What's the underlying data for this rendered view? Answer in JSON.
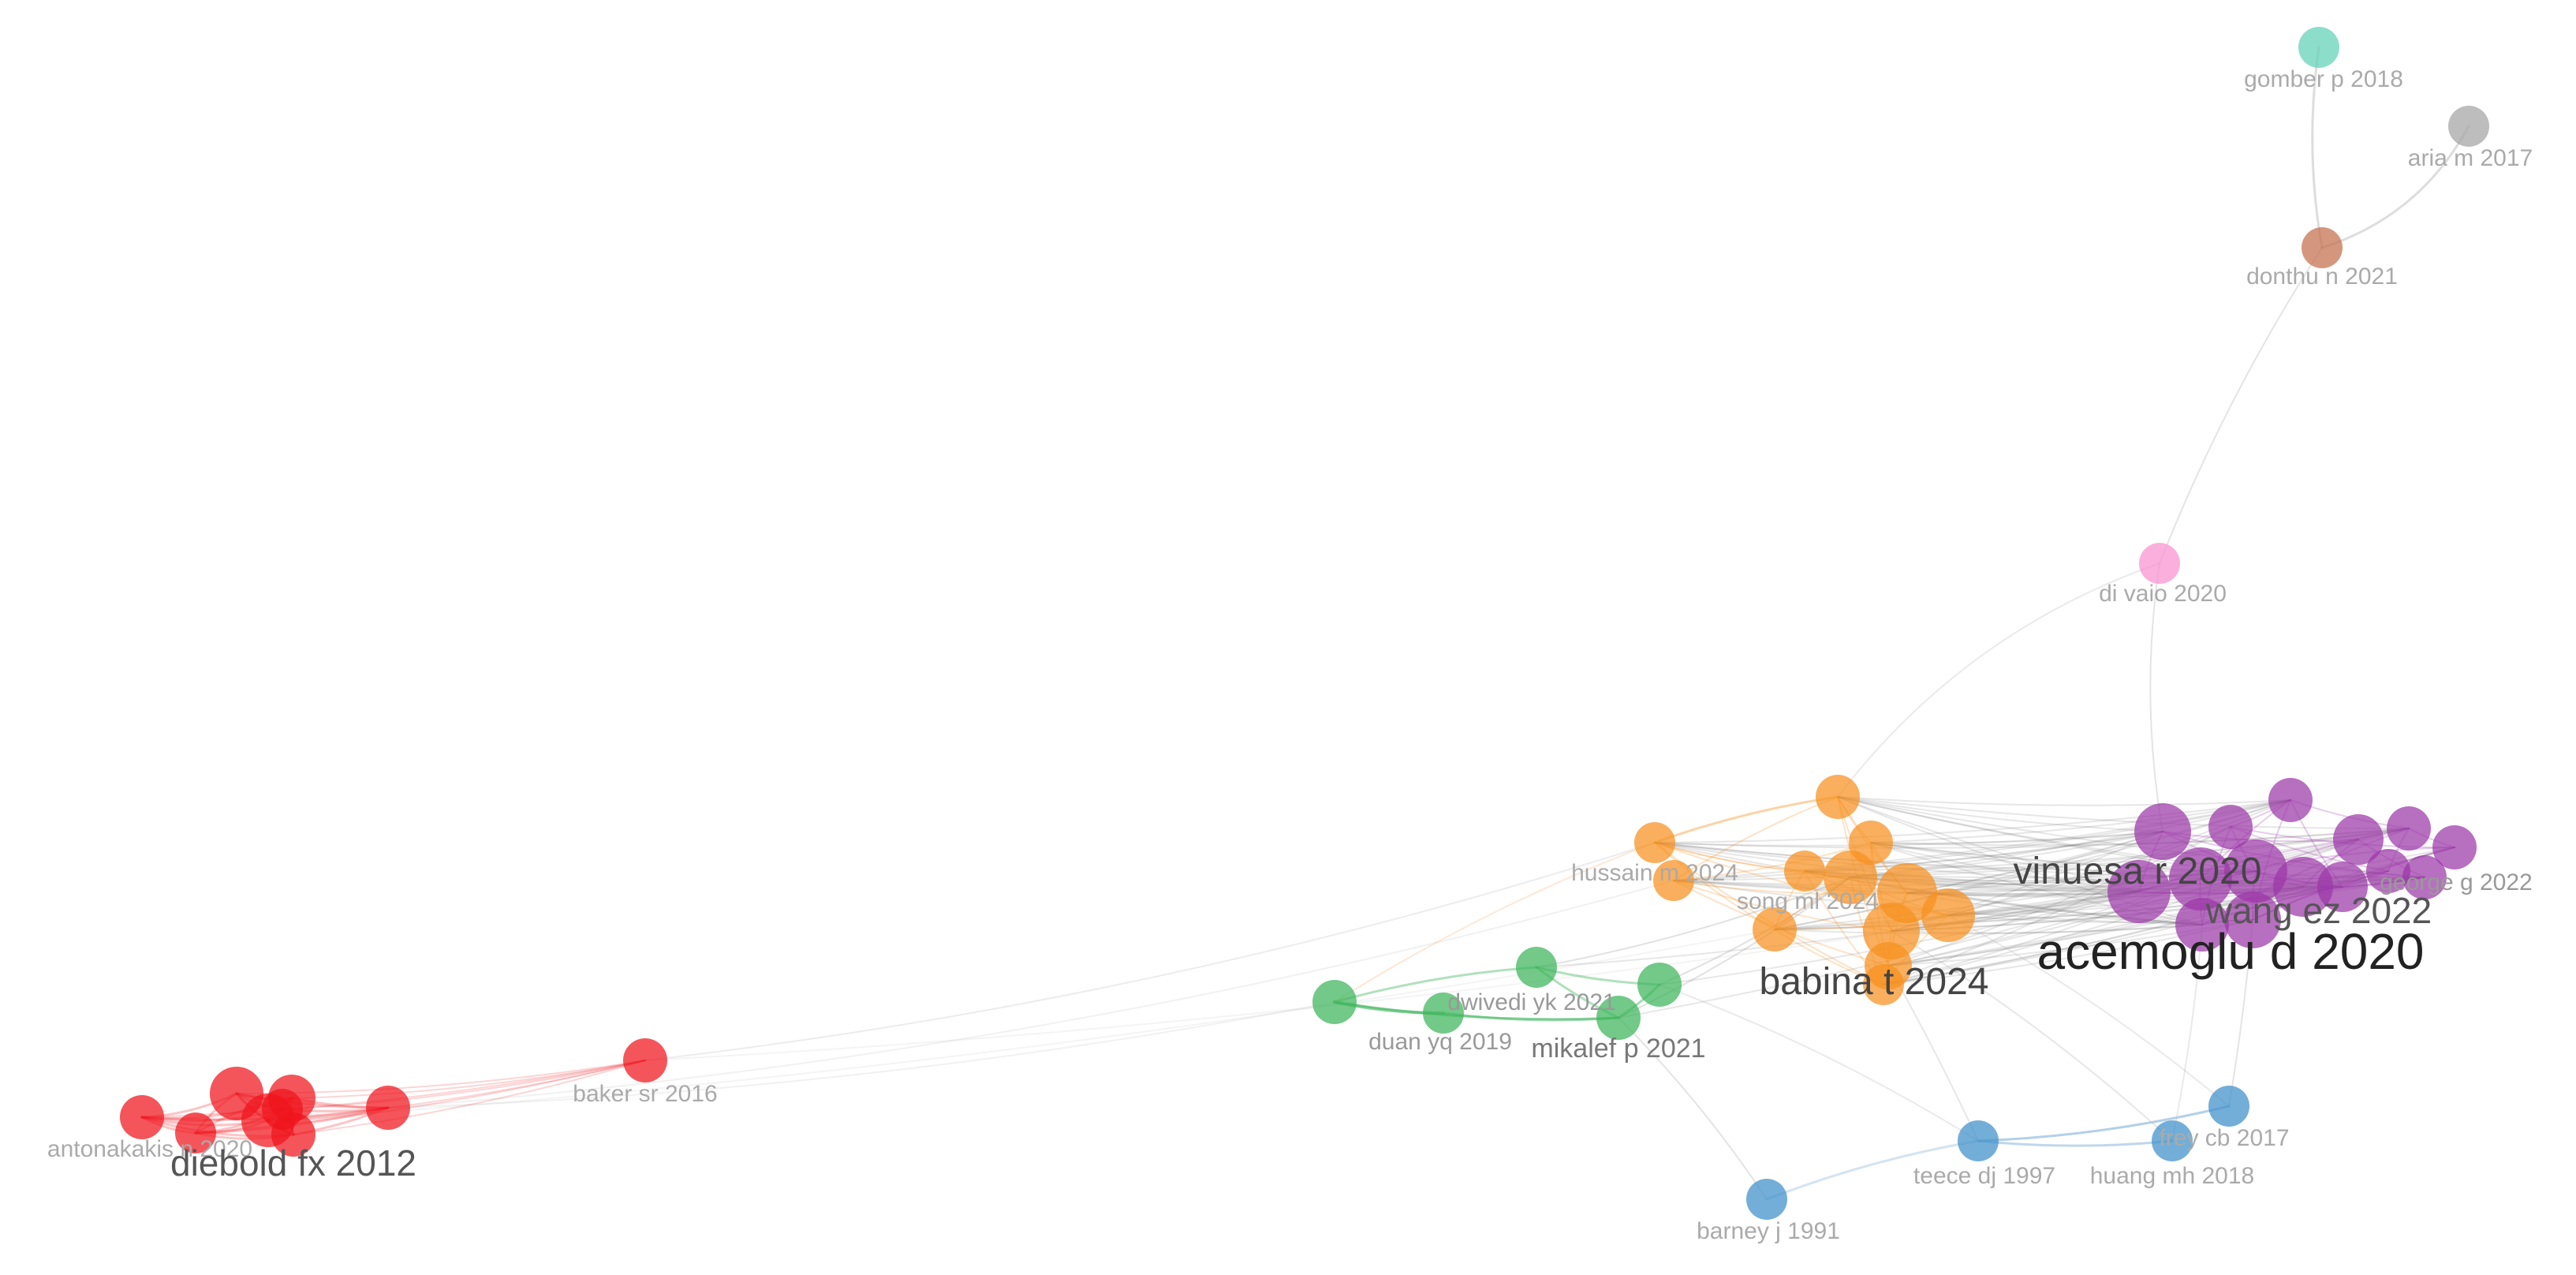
{
  "network": {
    "clusters": {
      "red": "#f0141c",
      "green": "#3cb45a",
      "orange": "#f7901e",
      "purple": "#9b37a8",
      "blue": "#3d8fc9",
      "pink": "#f990cf",
      "teal": "#5fd1b5",
      "brown": "#c46f4c",
      "gray": "#a3a3a3"
    },
    "labels": {
      "gomber": "gomber p 2018",
      "aria": "aria m 2017",
      "donthu": "donthu n 2021",
      "divaio": "di vaio 2020",
      "hussain": "hussain m 2024",
      "song": "song ml 2024",
      "vinuesa": "vinuesa r 2020",
      "wang": "wang ez 2022",
      "acemoglu": "acemoglu d 2020",
      "babina": "babina t 2024",
      "george": "george g 2022",
      "dwivedi": "dwivedi yk 2021",
      "duan": "duan yq 2019",
      "mikalef": "mikalef p 2021",
      "baker": "baker sr 2016",
      "antonakakis": "antonakakis n 2020",
      "diebold": "diebold fx 2012",
      "frey": "frey cb 2017",
      "teece": "teece dj 1997",
      "huang": "huang mh 2018",
      "barney": "barney j 1991"
    }
  }
}
